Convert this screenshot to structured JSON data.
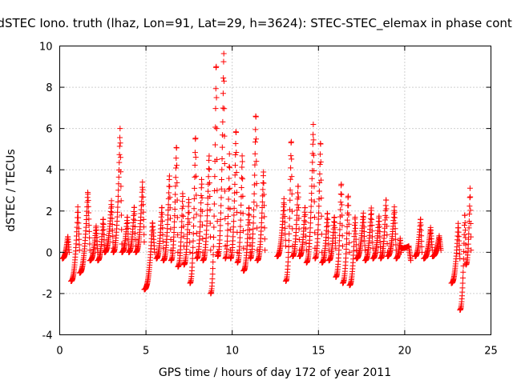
{
  "chart_data": {
    "type": "scatter",
    "title": "dSTEC Iono. truth (lhaz, Lon=91, Lat=29, h=3624): STEC-STEC_elemax in phase cont.",
    "xlabel": "GPS time / hours of day 172 of year 2011",
    "ylabel": "dSTEC  / TECUs",
    "xlim": [
      0,
      25
    ],
    "ylim": [
      -4,
      10
    ],
    "xticks": [
      0,
      5,
      10,
      15,
      20,
      25
    ],
    "yticks": [
      -4,
      -2,
      0,
      2,
      4,
      6,
      8,
      10
    ],
    "xtick_labels": [
      "0",
      "5",
      "10",
      "15",
      "20",
      "25"
    ],
    "ytick_labels": [
      "-4",
      "-2",
      "0",
      "2",
      "4",
      "6",
      "8",
      "10"
    ],
    "grid": true,
    "legend": "none",
    "marker": "plus",
    "color": "#ff0000",
    "arcs": [
      {
        "t0": 0.15,
        "t1": 0.55,
        "start": -0.3,
        "peak": 0.8,
        "end": 0.0
      },
      {
        "t0": 0.65,
        "t1": 1.15,
        "start": -1.4,
        "peak": 2.2,
        "end": 0.1
      },
      {
        "t0": 1.15,
        "t1": 1.75,
        "start": -1.0,
        "peak": 3.0,
        "end": 0.1
      },
      {
        "t0": 1.75,
        "t1": 2.2,
        "start": -0.4,
        "peak": 1.3,
        "end": 0.0
      },
      {
        "t0": 2.2,
        "t1": 2.6,
        "start": -0.4,
        "peak": 1.7,
        "end": 0.1
      },
      {
        "t0": 2.6,
        "t1": 3.1,
        "start": 0.0,
        "peak": 2.5,
        "end": 0.2
      },
      {
        "t0": 3.1,
        "t1": 3.6,
        "start": 0.0,
        "peak": 6.0,
        "end": 0.4
      },
      {
        "t0": 3.6,
        "t1": 4.0,
        "start": 0.0,
        "peak": 1.8,
        "end": 0.1
      },
      {
        "t0": 4.0,
        "t1": 4.4,
        "start": 0.0,
        "peak": 2.3,
        "end": 0.3
      },
      {
        "t0": 4.4,
        "t1": 4.9,
        "start": 0.0,
        "peak": 3.4,
        "end": 0.5
      },
      {
        "t0": 4.9,
        "t1": 5.5,
        "start": -1.8,
        "peak": 1.5,
        "end": 0.0
      },
      {
        "t0": 5.6,
        "t1": 6.0,
        "start": -0.3,
        "peak": 2.3,
        "end": 0.2
      },
      {
        "t0": 6.0,
        "t1": 6.45,
        "start": -0.4,
        "peak": 3.8,
        "end": 0.1
      },
      {
        "t0": 6.45,
        "t1": 6.85,
        "start": -0.4,
        "peak": 5.4,
        "end": 0.0
      },
      {
        "t0": 6.85,
        "t1": 7.2,
        "start": -0.7,
        "peak": 3.0,
        "end": 0.3
      },
      {
        "t0": 7.2,
        "t1": 7.55,
        "start": -0.6,
        "peak": 2.7,
        "end": 0.0
      },
      {
        "t0": 7.55,
        "t1": 7.95,
        "start": -1.5,
        "peak": 5.9,
        "end": 0.0
      },
      {
        "t0": 7.95,
        "t1": 8.3,
        "start": -0.3,
        "peak": 3.7,
        "end": 0.0
      },
      {
        "t0": 8.3,
        "t1": 8.75,
        "start": -0.4,
        "peak": 4.8,
        "end": 0.1
      },
      {
        "t0": 8.75,
        "t1": 9.15,
        "start": -2.0,
        "peak": 9.6,
        "end": 0.0
      },
      {
        "t0": 9.15,
        "t1": 9.6,
        "start": -0.2,
        "peak": 9.9,
        "end": 0.3
      },
      {
        "t0": 9.6,
        "t1": 9.9,
        "start": -0.3,
        "peak": 4.9,
        "end": 0.1
      },
      {
        "t0": 9.9,
        "t1": 10.3,
        "start": -0.3,
        "peak": 6.2,
        "end": 0.0
      },
      {
        "t0": 10.3,
        "t1": 10.65,
        "start": -0.5,
        "peak": 4.9,
        "end": 0.2
      },
      {
        "t0": 10.65,
        "t1": 11.05,
        "start": -0.9,
        "peak": 2.3,
        "end": 0.0
      },
      {
        "t0": 11.05,
        "t1": 11.45,
        "start": -0.3,
        "peak": 7.0,
        "end": 0.1
      },
      {
        "t0": 11.45,
        "t1": 11.9,
        "start": -0.4,
        "peak": 4.0,
        "end": 0.1
      },
      {
        "t0": 12.6,
        "t1": 13.1,
        "start": -0.2,
        "peak": 2.6,
        "end": 0.3
      },
      {
        "t0": 13.1,
        "t1": 13.5,
        "start": -1.4,
        "peak": 5.7,
        "end": 0.3
      },
      {
        "t0": 13.5,
        "t1": 13.9,
        "start": -0.2,
        "peak": 3.4,
        "end": 0.1
      },
      {
        "t0": 13.9,
        "t1": 14.3,
        "start": -0.2,
        "peak": 2.3,
        "end": 0.1
      },
      {
        "t0": 14.3,
        "t1": 14.8,
        "start": -0.5,
        "peak": 6.2,
        "end": 0.2
      },
      {
        "t0": 14.8,
        "t1": 15.2,
        "start": -0.3,
        "peak": 5.6,
        "end": 0.0
      },
      {
        "t0": 15.2,
        "t1": 15.6,
        "start": -0.5,
        "peak": 2.0,
        "end": 0.1
      },
      {
        "t0": 15.6,
        "t1": 16.0,
        "start": -0.4,
        "peak": 1.8,
        "end": 0.2
      },
      {
        "t0": 16.0,
        "t1": 16.4,
        "start": -1.2,
        "peak": 3.5,
        "end": 0.3
      },
      {
        "t0": 16.4,
        "t1": 16.8,
        "start": -1.5,
        "peak": 2.9,
        "end": 0.0
      },
      {
        "t0": 16.8,
        "t1": 17.2,
        "start": -1.6,
        "peak": 1.8,
        "end": 0.1
      },
      {
        "t0": 17.2,
        "t1": 17.7,
        "start": -0.3,
        "peak": 1.9,
        "end": 0.1
      },
      {
        "t0": 17.7,
        "t1": 18.15,
        "start": -0.4,
        "peak": 2.2,
        "end": 0.2
      },
      {
        "t0": 18.15,
        "t1": 18.6,
        "start": -0.3,
        "peak": 1.8,
        "end": 0.0
      },
      {
        "t0": 18.6,
        "t1": 19.0,
        "start": -0.3,
        "peak": 2.7,
        "end": 0.0
      },
      {
        "t0": 19.0,
        "t1": 19.5,
        "start": -0.2,
        "peak": 2.2,
        "end": 0.1
      },
      {
        "t0": 19.5,
        "t1": 19.8,
        "start": -0.3,
        "peak": 0.7,
        "end": 0.0
      },
      {
        "t0": 19.8,
        "t1": 20.35,
        "start": 0.2,
        "peak": 0.3,
        "end": -0.4
      },
      {
        "t0": 20.6,
        "t1": 21.0,
        "start": -0.2,
        "peak": 1.7,
        "end": 0.0
      },
      {
        "t0": 21.1,
        "t1": 21.6,
        "start": -0.3,
        "peak": 1.2,
        "end": 0.1
      },
      {
        "t0": 21.6,
        "t1": 22.1,
        "start": -0.2,
        "peak": 0.8,
        "end": 0.1
      },
      {
        "t0": 22.7,
        "t1": 23.2,
        "start": -1.5,
        "peak": 1.4,
        "end": -0.3
      },
      {
        "t0": 23.2,
        "t1": 23.55,
        "start": -2.8,
        "peak": 2.0,
        "end": 0.0
      },
      {
        "t0": 23.55,
        "t1": 23.85,
        "start": -0.6,
        "peak": 3.2,
        "end": 0.1
      }
    ]
  }
}
